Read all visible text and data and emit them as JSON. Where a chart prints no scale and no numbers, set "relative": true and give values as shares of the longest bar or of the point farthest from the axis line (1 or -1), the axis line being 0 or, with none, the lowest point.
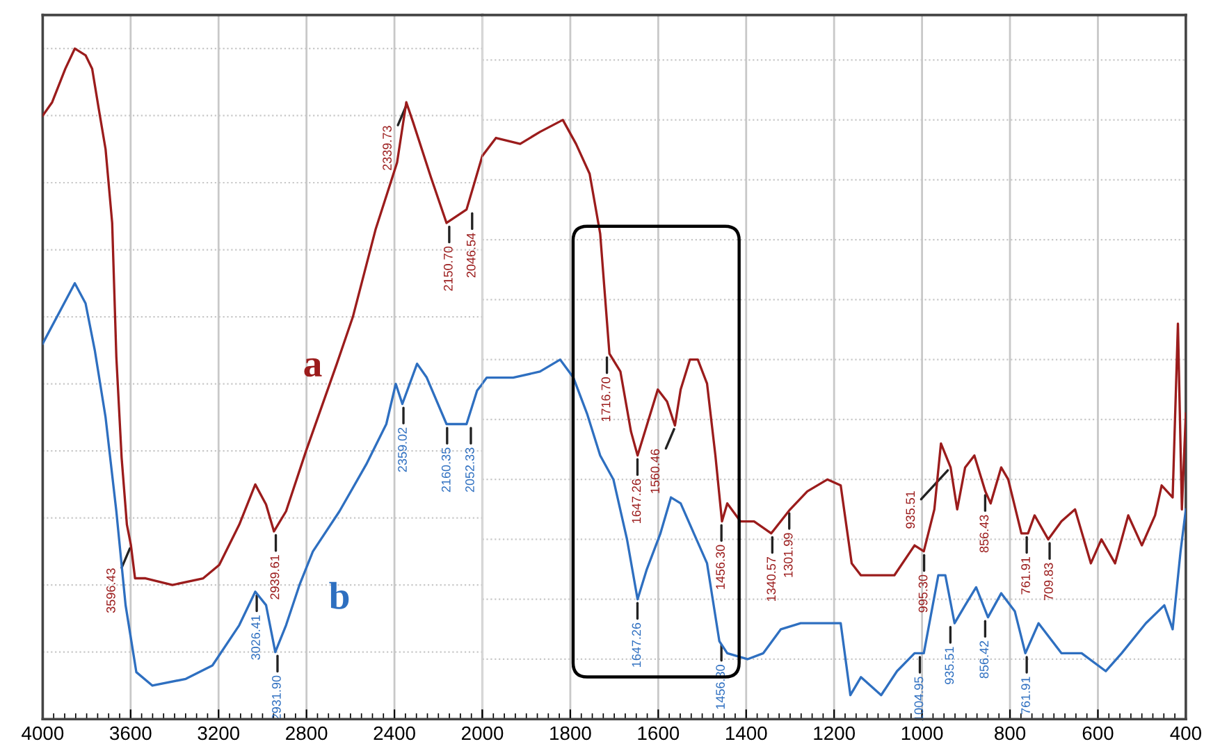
{
  "chart_data": [
    {
      "type": "line",
      "relative": true,
      "grid": true,
      "legend": false,
      "marker": "none",
      "line_style": "solid",
      "tick_labels": "x",
      "xlim": [
        4000,
        2000
      ],
      "xticks": [
        4000,
        3600,
        3200,
        2800,
        2400,
        2000
      ],
      "series": [
        {
          "name": "a",
          "color": "#9b1c1c",
          "x": [
            4000,
            3957,
            3897,
            3854,
            3805,
            3775,
            3745,
            3714,
            3684,
            3665,
            3641,
            3617,
            3599,
            3580,
            3532,
            3410,
            3270,
            3197,
            3106,
            3033,
            2984,
            2948,
            2893,
            2802,
            2662,
            2589,
            2486,
            2388,
            2346,
            2315,
            2236,
            2163,
            2072,
            2000
          ],
          "values": [
            0.9,
            0.92,
            0.97,
            1.0,
            0.99,
            0.97,
            0.91,
            0.85,
            0.74,
            0.54,
            0.39,
            0.29,
            0.26,
            0.21,
            0.21,
            0.2,
            0.21,
            0.23,
            0.29,
            0.35,
            0.32,
            0.28,
            0.31,
            0.4,
            0.53,
            0.6,
            0.73,
            0.83,
            0.92,
            0.89,
            0.81,
            0.74,
            0.76,
            0.84
          ]
        },
        {
          "name": "b",
          "color": "#2e6fc0",
          "x": [
            4000,
            3854,
            3805,
            3763,
            3714,
            3665,
            3623,
            3574,
            3501,
            3349,
            3228,
            3106,
            3033,
            2984,
            2942,
            2893,
            2832,
            2771,
            2650,
            2528,
            2437,
            2394,
            2364,
            2297,
            2254,
            2163,
            2072,
            2024,
            2000
          ],
          "values": [
            0.56,
            0.65,
            0.62,
            0.55,
            0.45,
            0.31,
            0.17,
            0.07,
            0.05,
            0.06,
            0.08,
            0.14,
            0.19,
            0.17,
            0.1,
            0.14,
            0.2,
            0.25,
            0.31,
            0.38,
            0.44,
            0.5,
            0.47,
            0.53,
            0.51,
            0.44,
            0.44,
            0.49,
            0.5
          ]
        }
      ],
      "annotations": [
        {
          "text": "3596.43",
          "x": 3596.43,
          "y": 0.26
        },
        {
          "text": "2939.61",
          "x": 2939.61,
          "y": 0.28
        },
        {
          "text": "2339.73",
          "x": 2339.73,
          "y": 0.92
        },
        {
          "text": "2150.70",
          "x": 2150.7,
          "y": 0.74
        },
        {
          "text": "2046.54",
          "x": 2046.54,
          "y": 0.76
        },
        {
          "text": "3026.41",
          "x": 3026.41,
          "y": 0.19
        },
        {
          "text": "2931.90",
          "x": 2931.9,
          "y": 0.1
        },
        {
          "text": "2359.02",
          "x": 2359.02,
          "y": 0.47
        },
        {
          "text": "2160.35",
          "x": 2160.35,
          "y": 0.44
        },
        {
          "text": "2052.33",
          "x": 2052.33,
          "y": 0.44
        }
      ]
    },
    {
      "type": "line",
      "relative": true,
      "grid": true,
      "legend": false,
      "marker": "none",
      "line_style": "solid",
      "tick_labels": "x",
      "xlim": [
        2000,
        400
      ],
      "xticks": [
        {
          "value": 2000,
          "label": null
        },
        1800,
        1600,
        1400,
        1200,
        1000,
        800,
        600,
        400
      ],
      "series": [
        {
          "color": "#9b1c1c",
          "x": [
            2000,
            1969,
            1914,
            1869,
            1817,
            1787,
            1756,
            1732,
            1711,
            1686,
            1662,
            1647,
            1601,
            1580,
            1562,
            1549,
            1528,
            1510,
            1489,
            1470,
            1455,
            1443,
            1413,
            1382,
            1343,
            1300,
            1261,
            1215,
            1185,
            1160,
            1139,
            1093,
            1063,
            1017,
            996,
            972,
            957,
            935,
            920,
            902,
            881,
            856,
            844,
            820,
            804,
            774,
            759,
            744,
            713,
            683,
            652,
            616,
            592,
            561,
            531,
            500,
            470,
            455,
            430,
            418,
            409,
            400
          ],
          "values": [
            0.94,
            0.97,
            0.96,
            0.98,
            1.0,
            0.96,
            0.91,
            0.81,
            0.61,
            0.58,
            0.48,
            0.44,
            0.55,
            0.53,
            0.49,
            0.55,
            0.6,
            0.6,
            0.56,
            0.44,
            0.33,
            0.36,
            0.33,
            0.33,
            0.31,
            0.35,
            0.38,
            0.4,
            0.39,
            0.26,
            0.24,
            0.24,
            0.24,
            0.29,
            0.28,
            0.35,
            0.46,
            0.42,
            0.35,
            0.42,
            0.44,
            0.38,
            0.36,
            0.42,
            0.4,
            0.31,
            0.31,
            0.34,
            0.3,
            0.33,
            0.35,
            0.26,
            0.3,
            0.26,
            0.34,
            0.29,
            0.34,
            0.39,
            0.37,
            0.66,
            0.35,
            0.51
          ]
        },
        {
          "color": "#2e6fc0",
          "x": [
            2000,
            1990,
            1930,
            1869,
            1823,
            1793,
            1762,
            1732,
            1702,
            1671,
            1647,
            1626,
            1595,
            1571,
            1549,
            1519,
            1489,
            1461,
            1443,
            1397,
            1361,
            1321,
            1276,
            1221,
            1185,
            1163,
            1139,
            1093,
            1057,
            1017,
            996,
            963,
            947,
            926,
            902,
            877,
            850,
            820,
            789,
            765,
            735,
            683,
            637,
            582,
            546,
            491,
            449,
            430,
            412,
            400
          ],
          "values": [
            0.56,
            0.57,
            0.57,
            0.58,
            0.6,
            0.57,
            0.51,
            0.44,
            0.4,
            0.3,
            0.2,
            0.25,
            0.31,
            0.37,
            0.36,
            0.31,
            0.26,
            0.13,
            0.11,
            0.1,
            0.11,
            0.15,
            0.16,
            0.16,
            0.16,
            0.04,
            0.07,
            0.04,
            0.08,
            0.11,
            0.11,
            0.24,
            0.24,
            0.16,
            0.19,
            0.22,
            0.17,
            0.21,
            0.18,
            0.11,
            0.16,
            0.11,
            0.11,
            0.08,
            0.11,
            0.16,
            0.19,
            0.15,
            0.28,
            0.35
          ]
        }
      ],
      "annotations": [
        {
          "text": "1716.70",
          "x": 1716.7,
          "y": 0.61
        },
        {
          "text": "1647.26",
          "x": 1647.26,
          "y": 0.44
        },
        {
          "text": "1560.46",
          "x": 1560.46,
          "y": 0.49
        },
        {
          "text": "1456.30",
          "x": 1456.3,
          "y": 0.33
        },
        {
          "text": "1340.57",
          "x": 1340.57,
          "y": 0.31
        },
        {
          "text": "1301.99",
          "x": 1301.99,
          "y": 0.35
        },
        {
          "text": "995.30",
          "x": 995.3,
          "y": 0.28
        },
        {
          "text": "935.51",
          "x": 935.51,
          "y": 0.42
        },
        {
          "text": "856.43",
          "x": 856.43,
          "y": 0.38
        },
        {
          "text": "761.91",
          "x": 761.91,
          "y": 0.31
        },
        {
          "text": "709.83",
          "x": 709.83,
          "y": 0.3
        },
        {
          "text": "1647.26",
          "x": 1647.26,
          "y": 0.2
        },
        {
          "text": "1456.30",
          "x": 1456.3,
          "y": 0.13
        },
        {
          "text": "1004.95",
          "x": 1004.95,
          "y": 0.11
        },
        {
          "text": "935.51",
          "x": 935.51,
          "y": 0.16
        },
        {
          "text": "856.42",
          "x": 856.42,
          "y": 0.17
        },
        {
          "text": "761.91",
          "x": 761.91,
          "y": 0.11
        }
      ]
    }
  ]
}
